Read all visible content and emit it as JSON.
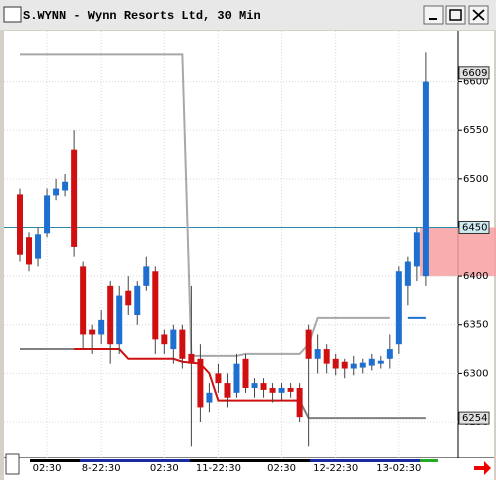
{
  "chart_data": {
    "type": "candlestick",
    "title": "S.WYNN - Wynn Resorts Ltd, 30 Min",
    "categories": [
      null,
      null,
      null,
      "02:30",
      null,
      null,
      null,
      null,
      null,
      "8-22:30",
      null,
      null,
      null,
      null,
      null,
      null,
      "02:30",
      null,
      null,
      null,
      null,
      null,
      "11-22:30",
      null,
      null,
      null,
      null,
      null,
      null,
      "02:30",
      null,
      null,
      null,
      null,
      null,
      "12-22:30",
      null,
      null,
      null,
      null,
      null,
      null,
      "13-02:30",
      null,
      null,
      null
    ],
    "open": [
      6484,
      6440,
      6418,
      6444,
      6483,
      6488,
      6530,
      6410,
      6345,
      6340,
      6390,
      6330,
      6385,
      6360,
      6390,
      6405,
      6340,
      6325,
      6345,
      6320,
      6315,
      6270,
      6300,
      6290,
      6280,
      6315,
      6285,
      6290,
      6285,
      6280,
      6285,
      6285,
      6345,
      6315,
      6325,
      6315,
      6312,
      6305,
      6306,
      6308,
      6310,
      6315,
      6330,
      6390,
      6410,
      6400
    ],
    "high": [
      6490,
      6445,
      6450,
      6490,
      6500,
      6505,
      6550,
      6415,
      6350,
      6365,
      6395,
      6390,
      6400,
      6395,
      6420,
      6410,
      6345,
      6350,
      6350,
      6390,
      6330,
      6290,
      6310,
      6300,
      6320,
      6320,
      6295,
      6295,
      6290,
      6290,
      6290,
      6290,
      6350,
      6340,
      6330,
      6320,
      6315,
      6318,
      6315,
      6320,
      6318,
      6340,
      6410,
      6420,
      6450,
      6630
    ],
    "low": [
      6415,
      6405,
      6410,
      6440,
      6478,
      6482,
      6420,
      6325,
      6320,
      6330,
      6310,
      6320,
      6360,
      6350,
      6385,
      6320,
      6320,
      6310,
      6305,
      6225,
      6250,
      6260,
      6280,
      6265,
      6275,
      6280,
      6275,
      6275,
      6270,
      6272,
      6275,
      6250,
      6225,
      6300,
      6300,
      6298,
      6295,
      6298,
      6300,
      6303,
      6305,
      6305,
      6320,
      6370,
      6395,
      6390
    ],
    "close": [
      6422,
      6412,
      6443,
      6483,
      6490,
      6497,
      6430,
      6340,
      6340,
      6355,
      6330,
      6380,
      6370,
      6390,
      6410,
      6335,
      6330,
      6345,
      6315,
      6310,
      6265,
      6280,
      6290,
      6275,
      6310,
      6285,
      6290,
      6283,
      6280,
      6285,
      6281,
      6255,
      6315,
      6325,
      6310,
      6305,
      6305,
      6310,
      6311,
      6315,
      6313,
      6325,
      6405,
      6415,
      6445,
      6600
    ],
    "up_color": "#1f6fd0",
    "down_color": "#d01010",
    "series": [
      {
        "color": "#a8a8a8",
        "values": [
          6628,
          6628,
          6628,
          6628,
          6628,
          6628,
          6628,
          6628,
          6628,
          6628,
          6628,
          6628,
          6628,
          6628,
          6628,
          6628,
          6628,
          6628,
          6628,
          6318,
          6318,
          6318,
          6318,
          6318,
          6318,
          6320,
          6320,
          6320,
          6320,
          6320,
          6320,
          6320,
          6330,
          6357,
          6357,
          6357,
          6357,
          6357,
          6357,
          6357,
          6357,
          6357,
          null,
          null,
          null,
          null
        ]
      },
      {
        "color": "#808080",
        "values": [
          6325,
          6325,
          6325,
          6325,
          6325,
          6325,
          6325,
          null,
          null,
          null,
          null,
          null,
          null,
          null,
          null,
          null,
          null,
          null,
          null,
          null,
          null,
          null,
          null,
          null,
          null,
          null,
          null,
          null,
          null,
          null,
          null,
          6272,
          6254,
          6254,
          6254,
          6254,
          6254,
          6254,
          6254,
          6254,
          6254,
          6254,
          6254,
          6254,
          6254,
          6254
        ]
      },
      {
        "color": "#d01010",
        "values": [
          null,
          null,
          null,
          null,
          null,
          null,
          6325,
          6325,
          6325,
          6325,
          6325,
          6325,
          6315,
          6315,
          6315,
          6315,
          6315,
          6315,
          6312,
          6311,
          6310,
          6300,
          6272,
          6272,
          6272,
          6272,
          6272,
          6272,
          6272,
          6272,
          6272,
          6272,
          null,
          null,
          null,
          null,
          null,
          null,
          null,
          null,
          null,
          null,
          null,
          null,
          null,
          null
        ]
      },
      {
        "color": "#1f6fd0",
        "values": [
          null,
          null,
          null,
          null,
          null,
          null,
          null,
          null,
          null,
          null,
          null,
          null,
          null,
          null,
          null,
          null,
          null,
          null,
          null,
          null,
          null,
          null,
          null,
          null,
          null,
          null,
          null,
          null,
          null,
          null,
          null,
          null,
          null,
          null,
          null,
          null,
          null,
          null,
          null,
          null,
          null,
          null,
          null,
          6357,
          6357,
          6357
        ]
      }
    ],
    "hline": 6450,
    "hline_color": "#2a8aa8",
    "zone": [
      6400,
      6450
    ],
    "zone_color": "#f7a0a0",
    "price_markers": [
      6609,
      6450,
      6254
    ],
    "ylim": [
      6213,
      6652
    ],
    "yticks": [
      6250,
      6300,
      6350,
      6400,
      6450,
      6500,
      6550,
      6600
    ],
    "grid": true
  }
}
